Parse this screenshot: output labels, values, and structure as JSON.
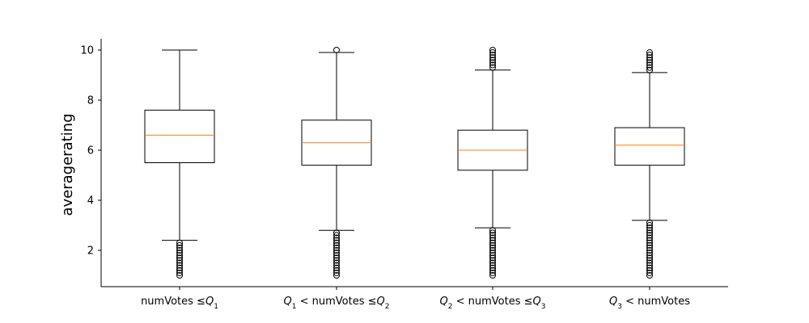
{
  "chart_data": {
    "type": "box",
    "title": "",
    "xlabel": "",
    "ylabel": "averagerating",
    "ylim": [
      0.55,
      10.45
    ],
    "yticks": [
      2,
      4,
      6,
      8,
      10
    ],
    "grid": false,
    "colors": {
      "box": "#000000",
      "median": "#ff7f0e",
      "axis": "#000000"
    },
    "categories": [
      {
        "label_parts": [
          {
            "t": "numVotes  ",
            "italic": false
          },
          {
            "t": "≤",
            "italic": false
          },
          {
            "t": "Q",
            "italic": true
          },
          {
            "t": "1",
            "sub": true
          }
        ],
        "whisker_low": 2.4,
        "q1": 5.5,
        "median": 6.6,
        "q3": 7.6,
        "whisker_high": 10.0,
        "outliers_high": [],
        "outliers_low": [
          1.0,
          1.1,
          1.2,
          1.3,
          1.4,
          1.5,
          1.6,
          1.7,
          1.8,
          1.9,
          2.0,
          2.1,
          2.2,
          2.3
        ]
      },
      {
        "label_parts": [
          {
            "t": "Q",
            "italic": true
          },
          {
            "t": "1",
            "sub": true
          },
          {
            "t": " < numVotes ",
            "italic": false
          },
          {
            "t": "≤",
            "italic": false
          },
          {
            "t": "Q",
            "italic": true
          },
          {
            "t": "2",
            "sub": true
          }
        ],
        "whisker_low": 2.8,
        "q1": 5.4,
        "median": 6.3,
        "q3": 7.2,
        "whisker_high": 9.9,
        "outliers_high": [
          10.0
        ],
        "outliers_low": [
          1.0,
          1.1,
          1.2,
          1.3,
          1.4,
          1.5,
          1.6,
          1.7,
          1.8,
          1.9,
          2.0,
          2.1,
          2.2,
          2.3,
          2.4,
          2.5,
          2.6,
          2.7
        ]
      },
      {
        "label_parts": [
          {
            "t": "Q",
            "italic": true
          },
          {
            "t": "2",
            "sub": true
          },
          {
            "t": " < numVotes ",
            "italic": false
          },
          {
            "t": "≤",
            "italic": false
          },
          {
            "t": "Q",
            "italic": true
          },
          {
            "t": "3",
            "sub": true
          }
        ],
        "whisker_low": 2.9,
        "q1": 5.2,
        "median": 6.0,
        "q3": 6.8,
        "whisker_high": 9.2,
        "outliers_high": [
          9.3,
          9.4,
          9.5,
          9.6,
          9.7,
          9.8,
          9.9,
          10.0
        ],
        "outliers_low": [
          1.0,
          1.1,
          1.2,
          1.3,
          1.4,
          1.5,
          1.6,
          1.7,
          1.8,
          1.9,
          2.0,
          2.1,
          2.2,
          2.3,
          2.4,
          2.5,
          2.6,
          2.7,
          2.8
        ]
      },
      {
        "label_parts": [
          {
            "t": "Q",
            "italic": true
          },
          {
            "t": "3",
            "sub": true
          },
          {
            "t": " < numVotes",
            "italic": false
          }
        ],
        "whisker_low": 3.2,
        "q1": 5.4,
        "median": 6.2,
        "q3": 6.9,
        "whisker_high": 9.1,
        "outliers_high": [
          9.2,
          9.3,
          9.4,
          9.5,
          9.6,
          9.7,
          9.8,
          9.9
        ],
        "outliers_low": [
          1.0,
          1.1,
          1.2,
          1.3,
          1.4,
          1.5,
          1.6,
          1.7,
          1.8,
          1.9,
          2.0,
          2.1,
          2.2,
          2.3,
          2.4,
          2.5,
          2.6,
          2.7,
          2.8,
          2.9,
          3.0,
          3.1
        ]
      }
    ]
  }
}
